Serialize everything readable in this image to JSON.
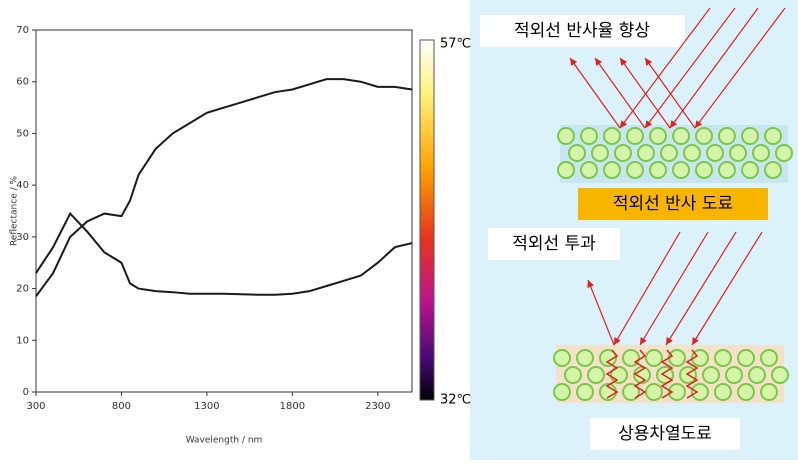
{
  "chart_data": {
    "type": "line",
    "xlabel": "Wavelength / nm",
    "ylabel": "Reflectance / %",
    "x": [
      300,
      400,
      500,
      600,
      700,
      800,
      850,
      900,
      1000,
      1100,
      1200,
      1300,
      1400,
      1500,
      1600,
      1700,
      1800,
      1900,
      2000,
      2100,
      2200,
      2300,
      2400,
      2500
    ],
    "series": [
      {
        "color": "#1a1a1a",
        "values": [
          18.5,
          23,
          30,
          33,
          34.5,
          34,
          37,
          42,
          47,
          50,
          52,
          54,
          55,
          56,
          57,
          58,
          58.5,
          59.5,
          60.5,
          60.5,
          60,
          59,
          59,
          58.5
        ]
      },
      {
        "color": "#1a1a1a",
        "values": [
          23,
          28,
          34.5,
          31,
          27,
          25,
          21,
          20,
          19.5,
          19.3,
          19,
          19,
          19,
          18.9,
          18.8,
          18.8,
          19,
          19.5,
          20.5,
          21.5,
          22.5,
          25,
          28,
          28.8
        ]
      }
    ],
    "xlim": [
      300,
      2500
    ],
    "xticks": [
      300,
      800,
      1300,
      1800,
      2300
    ],
    "ylim": [
      0,
      70
    ],
    "yticks": [
      0,
      10,
      20,
      30,
      40,
      50,
      60,
      70
    ],
    "colorbar": {
      "max_label": "57℃",
      "min_label": "32℃"
    }
  },
  "diagram": {
    "reflect_title": "적외선 반사율 향상",
    "reflect_coating": "적외선 반사 도료",
    "transmit_title": "적외선 투과",
    "common_coating": "상용차열도료"
  }
}
